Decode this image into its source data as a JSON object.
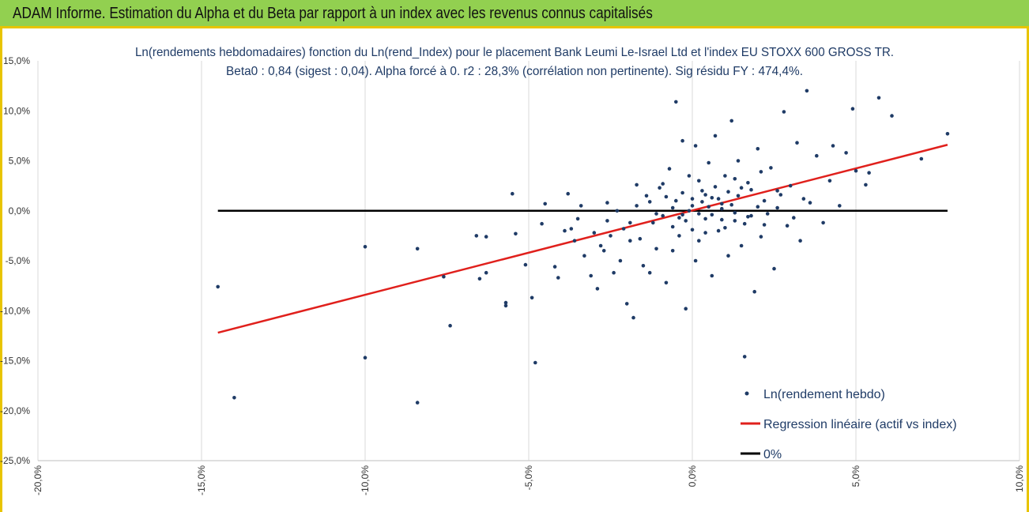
{
  "header": {
    "title": "ADAM Informe. Estimation du Alpha et du Beta par rapport à un index avec les revenus connus capitalisés",
    "bg_color": "#92d050",
    "accent_color": "#e8c400"
  },
  "chart_data": {
    "type": "scatter",
    "title_line1": "Ln(rendements hebdomadaires) fonction du Ln(rend_Index) pour le placement Bank Leumi Le-Israel Ltd et l'index EU STOXX 600 GROSS TR.",
    "title_line2": "Beta0 : 0,84  (sigest : 0,04).  Alpha forcé à 0. r2 : 28,3% (corrélation non pertinente). Sig résidu FY : 474,4%.",
    "xlim": [
      -20,
      10
    ],
    "ylim": [
      -25,
      15
    ],
    "x_ticks": [
      -20,
      -15,
      -10,
      -5,
      0,
      5,
      10
    ],
    "y_ticks": [
      -25,
      -20,
      -15,
      -10,
      -5,
      0,
      5,
      10,
      15
    ],
    "x_tick_labels": [
      "-20,0%",
      "-15,0%",
      "-10,0%",
      "-5,0%",
      "0,0%",
      "5,0%",
      "10,0%"
    ],
    "y_tick_labels": [
      "-25,0%",
      "-20,0%",
      "-15,0%",
      "-10,0%",
      "-5,0%",
      "0,0%",
      "5,0%",
      "10,0%",
      "15,0%"
    ],
    "grid_vertical": true,
    "series": [
      {
        "name": "Ln(rendement hebdo)",
        "kind": "scatter",
        "color": "#1f3b66",
        "points": [
          [
            -14.5,
            -7.6
          ],
          [
            -14.0,
            -18.7
          ],
          [
            -10.0,
            -3.6
          ],
          [
            -10.0,
            -14.7
          ],
          [
            -8.4,
            -3.8
          ],
          [
            -8.4,
            -19.2
          ],
          [
            -7.6,
            -6.6
          ],
          [
            -7.4,
            -11.5
          ],
          [
            -6.6,
            -2.5
          ],
          [
            -6.5,
            -6.8
          ],
          [
            -6.3,
            -2.6
          ],
          [
            -6.3,
            -6.2
          ],
          [
            -5.7,
            -9.5
          ],
          [
            -5.7,
            -9.2
          ],
          [
            -5.5,
            1.7
          ],
          [
            -5.4,
            -2.3
          ],
          [
            -5.1,
            -5.4
          ],
          [
            -4.9,
            -8.7
          ],
          [
            -4.8,
            -15.2
          ],
          [
            -4.6,
            -1.3
          ],
          [
            -4.5,
            0.7
          ],
          [
            -4.2,
            -5.6
          ],
          [
            -4.1,
            -6.7
          ],
          [
            -3.9,
            -2.0
          ],
          [
            -3.8,
            1.7
          ],
          [
            -3.6,
            -3.0
          ],
          [
            -3.5,
            -0.8
          ],
          [
            -3.3,
            -4.5
          ],
          [
            -3.1,
            -6.5
          ],
          [
            -3.0,
            -2.2
          ],
          [
            -2.9,
            -7.8
          ],
          [
            -2.7,
            -4.0
          ],
          [
            -2.6,
            0.8
          ],
          [
            -2.5,
            -2.5
          ],
          [
            -2.4,
            -6.2
          ],
          [
            -2.2,
            -5.0
          ],
          [
            -2.1,
            -1.8
          ],
          [
            -2.0,
            -9.3
          ],
          [
            -1.9,
            -3.0
          ],
          [
            -1.8,
            -10.7
          ],
          [
            -1.7,
            0.5
          ],
          [
            -1.6,
            -2.8
          ],
          [
            -1.5,
            -5.5
          ],
          [
            -1.4,
            1.5
          ],
          [
            -1.3,
            -6.2
          ],
          [
            -1.2,
            -1.2
          ],
          [
            -1.1,
            -3.8
          ],
          [
            -1.0,
            2.3
          ],
          [
            -0.9,
            -0.5
          ],
          [
            -0.8,
            -7.2
          ],
          [
            -0.7,
            4.2
          ],
          [
            -0.6,
            -4.0
          ],
          [
            -0.5,
            10.9
          ],
          [
            -0.5,
            1.0
          ],
          [
            -0.4,
            -2.5
          ],
          [
            -0.3,
            7.0
          ],
          [
            -0.2,
            -1.0
          ],
          [
            -0.2,
            -9.8
          ],
          [
            -0.1,
            3.5
          ],
          [
            0.0,
            0.5
          ],
          [
            0.1,
            -5.0
          ],
          [
            0.1,
            6.5
          ],
          [
            0.2,
            -3.0
          ],
          [
            0.3,
            2.0
          ],
          [
            0.4,
            -0.8
          ],
          [
            0.5,
            4.8
          ],
          [
            0.6,
            -6.5
          ],
          [
            0.6,
            1.3
          ],
          [
            0.7,
            7.5
          ],
          [
            0.8,
            -2.0
          ],
          [
            0.9,
            0.2
          ],
          [
            1.0,
            3.5
          ],
          [
            1.1,
            -4.5
          ],
          [
            1.2,
            9.0
          ],
          [
            1.3,
            -1.0
          ],
          [
            1.4,
            5.0
          ],
          [
            1.4,
            1.5
          ],
          [
            1.5,
            -3.5
          ],
          [
            1.6,
            -14.6
          ],
          [
            1.7,
            2.8
          ],
          [
            1.8,
            -0.5
          ],
          [
            1.9,
            -8.1
          ],
          [
            2.0,
            6.2
          ],
          [
            2.1,
            -2.6
          ],
          [
            2.2,
            1.0
          ],
          [
            2.4,
            4.3
          ],
          [
            2.5,
            -5.8
          ],
          [
            2.6,
            0.3
          ],
          [
            2.8,
            9.9
          ],
          [
            2.9,
            -1.5
          ],
          [
            3.0,
            2.5
          ],
          [
            3.2,
            6.8
          ],
          [
            3.3,
            -3.0
          ],
          [
            3.5,
            12.0
          ],
          [
            3.6,
            0.8
          ],
          [
            3.8,
            5.5
          ],
          [
            4.0,
            -1.2
          ],
          [
            4.2,
            3.0
          ],
          [
            4.3,
            6.5
          ],
          [
            4.5,
            0.5
          ],
          [
            4.7,
            5.8
          ],
          [
            4.9,
            10.2
          ],
          [
            5.0,
            4.0
          ],
          [
            5.3,
            2.6
          ],
          [
            5.4,
            3.8
          ],
          [
            5.7,
            11.3
          ],
          [
            6.1,
            9.5
          ],
          [
            7.0,
            5.2
          ],
          [
            7.8,
            7.7
          ],
          [
            -3.7,
            -1.8
          ],
          [
            -3.4,
            0.5
          ],
          [
            -2.8,
            -3.5
          ],
          [
            -2.3,
            0.0
          ],
          [
            -1.9,
            -1.2
          ],
          [
            -1.3,
            0.9
          ],
          [
            -0.9,
            2.7
          ],
          [
            -0.6,
            -1.6
          ],
          [
            -0.3,
            1.8
          ],
          [
            0.2,
            3.0
          ],
          [
            0.4,
            -2.2
          ],
          [
            0.7,
            2.4
          ],
          [
            0.9,
            -0.9
          ],
          [
            1.1,
            1.9
          ],
          [
            1.3,
            3.2
          ],
          [
            1.6,
            -1.3
          ],
          [
            1.8,
            2.1
          ],
          [
            2.1,
            3.9
          ],
          [
            2.3,
            -0.3
          ],
          [
            2.7,
            1.6
          ],
          [
            3.1,
            -0.7
          ],
          [
            3.4,
            1.2
          ],
          [
            -2.6,
            -1.0
          ],
          [
            -1.7,
            2.6
          ],
          [
            -1.1,
            -0.3
          ],
          [
            -0.8,
            1.4
          ],
          [
            -0.4,
            -0.7
          ],
          [
            0.0,
            -1.9
          ],
          [
            0.3,
            0.9
          ],
          [
            0.6,
            -0.4
          ],
          [
            0.8,
            1.2
          ],
          [
            1.0,
            -1.7
          ],
          [
            1.2,
            0.6
          ],
          [
            1.5,
            2.3
          ],
          [
            1.7,
            -0.6
          ],
          [
            2.0,
            0.4
          ],
          [
            2.2,
            -1.4
          ],
          [
            2.6,
            2.0
          ],
          [
            0.0,
            1.2
          ],
          [
            0.2,
            -0.3
          ],
          [
            -0.1,
            0.0
          ],
          [
            0.5,
            0.4
          ],
          [
            0.9,
            0.7
          ],
          [
            -0.3,
            -0.4
          ],
          [
            0.4,
            1.6
          ],
          [
            1.3,
            -0.2
          ],
          [
            -0.6,
            0.3
          ]
        ]
      },
      {
        "name": "Regression linéaire (actif vs index)",
        "kind": "line",
        "color": "#e0201c",
        "x": [
          -14.5,
          7.8
        ],
        "y": [
          -12.2,
          6.6
        ]
      },
      {
        "name": "0%",
        "kind": "line",
        "color": "#000000",
        "x": [
          -14.5,
          7.8
        ],
        "y": [
          0,
          0
        ]
      }
    ],
    "legend": {
      "placement": "bottom-right",
      "items": [
        "Ln(rendement hebdo)",
        "Regression linéaire (actif vs index)",
        "0%"
      ]
    }
  }
}
